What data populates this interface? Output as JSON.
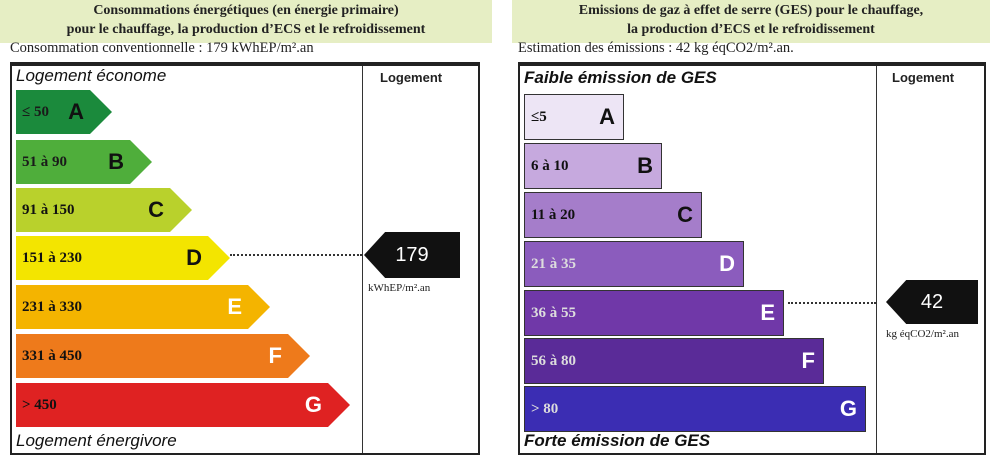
{
  "energy": {
    "title_line1": "Consommations énergétiques (en énergie primaire)",
    "title_line2": "pour le chauffage, la production d’ECS et le refroidissement",
    "conventional": "Consommation conventionnelle : 179 kWhEP/m².an",
    "top_label": "Logement économe",
    "bottom_label": "Logement énergivore",
    "column_header": "Logement",
    "value": "179",
    "unit": "kWhEP/m².an",
    "current_class": "D",
    "classes": [
      {
        "range": "≤ 50",
        "letter": "A",
        "color": "#1b8a3c"
      },
      {
        "range": "51 à 90",
        "letter": "B",
        "color": "#4fae3b"
      },
      {
        "range": "91 à 150",
        "letter": "C",
        "color": "#b9d12c"
      },
      {
        "range": "151 à 230",
        "letter": "D",
        "color": "#f3e500"
      },
      {
        "range": "231 à 330",
        "letter": "E",
        "color": "#f4b400"
      },
      {
        "range": "331 à 450",
        "letter": "F",
        "color": "#ee7a1b"
      },
      {
        "range": "> 450",
        "letter": "G",
        "color": "#df2222"
      }
    ]
  },
  "ges": {
    "title_line1": "Emissions de gaz à effet de serre (GES) pour le chauffage,",
    "title_line2": "la production d’ECS et le refroidissement",
    "estimate": "Estimation des émissions : 42 kg éqCO2/m².an.",
    "top_label": "Faible émission de GES",
    "bottom_label": "Forte émission de GES",
    "column_header": "Logement",
    "value": "42",
    "unit": "kg éqCO2/m².an",
    "current_class": "E",
    "classes": [
      {
        "range": "≤5",
        "letter": "A",
        "color": "#ede5f5"
      },
      {
        "range": "6 à 10",
        "letter": "B",
        "color": "#c6a9de"
      },
      {
        "range": "11 à 20",
        "letter": "C",
        "color": "#a57dca"
      },
      {
        "range": "21 à 35",
        "letter": "D",
        "color": "#8b5cbd"
      },
      {
        "range": "36 à 55",
        "letter": "E",
        "color": "#7038a8"
      },
      {
        "range": "56 à 80",
        "letter": "F",
        "color": "#5a2b98"
      },
      {
        "range": "> 80",
        "letter": "G",
        "color": "#3b2db3"
      }
    ]
  }
}
